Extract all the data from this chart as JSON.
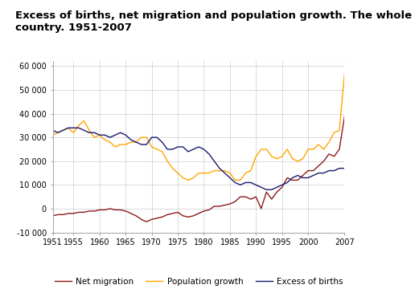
{
  "title": "Excess of births, net migration and population growth. The whole\ncountry. 1951-2007",
  "years": [
    1951,
    1952,
    1953,
    1954,
    1955,
    1956,
    1957,
    1958,
    1959,
    1960,
    1961,
    1962,
    1963,
    1964,
    1965,
    1966,
    1967,
    1968,
    1969,
    1970,
    1971,
    1972,
    1973,
    1974,
    1975,
    1976,
    1977,
    1978,
    1979,
    1980,
    1981,
    1982,
    1983,
    1984,
    1985,
    1986,
    1987,
    1988,
    1989,
    1990,
    1991,
    1992,
    1993,
    1994,
    1995,
    1996,
    1997,
    1998,
    1999,
    2000,
    2001,
    2002,
    2003,
    2004,
    2005,
    2006,
    2007
  ],
  "net_migration": [
    -3000,
    -2500,
    -2500,
    -2000,
    -2000,
    -1500,
    -1500,
    -1000,
    -1000,
    -500,
    -500,
    0,
    -500,
    -500,
    -1000,
    -2000,
    -3000,
    -4500,
    -5500,
    -4500,
    -4000,
    -3500,
    -2500,
    -2000,
    -1500,
    -3000,
    -3500,
    -3000,
    -2000,
    -1000,
    -500,
    1000,
    1000,
    1500,
    2000,
    3000,
    5000,
    5000,
    4000,
    5000,
    0,
    7000,
    4000,
    7000,
    9000,
    13000,
    12000,
    12000,
    14000,
    16000,
    16000,
    18000,
    20000,
    23000,
    22000,
    25000,
    39000
  ],
  "population_growth": [
    31000,
    32000,
    33000,
    34000,
    32000,
    35000,
    37000,
    33000,
    30000,
    31000,
    29000,
    28000,
    26000,
    27000,
    27000,
    28000,
    28000,
    30000,
    30000,
    26000,
    25000,
    24000,
    20000,
    17000,
    15000,
    13000,
    12000,
    13000,
    15000,
    15000,
    15000,
    16000,
    16000,
    16000,
    15000,
    12000,
    12000,
    15000,
    16000,
    22000,
    25000,
    25000,
    22000,
    21000,
    22000,
    25000,
    21000,
    20000,
    21000,
    25000,
    25000,
    27000,
    25000,
    28000,
    32000,
    33000,
    57000
  ],
  "excess_births": [
    33000,
    32000,
    33000,
    34000,
    34000,
    34000,
    33000,
    32000,
    32000,
    31000,
    31000,
    30000,
    31000,
    32000,
    31000,
    29000,
    28000,
    27000,
    27000,
    30000,
    30000,
    28000,
    25000,
    25000,
    26000,
    26000,
    24000,
    25000,
    26000,
    25000,
    23000,
    20000,
    17000,
    15000,
    13000,
    11000,
    10000,
    11000,
    11000,
    10000,
    9000,
    8000,
    8000,
    9000,
    10000,
    11000,
    13000,
    14000,
    13000,
    13000,
    14000,
    15000,
    15000,
    16000,
    16000,
    17000,
    17000
  ],
  "net_migration_color": "#8B1A1A",
  "population_growth_color": "#FFA500",
  "excess_births_color": "#191970",
  "ylim": [
    -10000,
    62000
  ],
  "yticks": [
    -10000,
    0,
    10000,
    20000,
    30000,
    40000,
    50000,
    60000
  ],
  "xticks": [
    1951,
    1955,
    1960,
    1965,
    1970,
    1975,
    1980,
    1985,
    1990,
    1995,
    2000,
    2007
  ],
  "background_color": "#ffffff",
  "grid_color": "#cccccc",
  "title_fontsize": 9.5
}
